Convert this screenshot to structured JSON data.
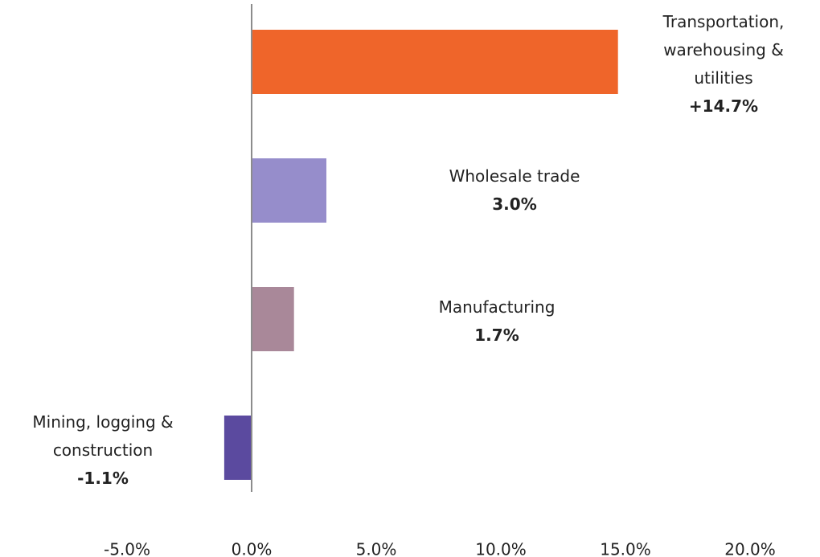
{
  "chart_data": {
    "type": "bar",
    "orientation": "horizontal",
    "categories": [
      "Transportation, warehousing & utilities",
      "Wholesale trade",
      "Manufacturing",
      "Mining, logging & construction"
    ],
    "values": [
      14.7,
      3.0,
      1.7,
      -1.1
    ],
    "value_labels": [
      "+14.7%",
      "3.0%",
      "1.7%",
      "-1.1%"
    ],
    "colors": [
      "#ef652a",
      "#968dcb",
      "#a98899",
      "#5b4a9f"
    ],
    "xlim": [
      -5,
      20
    ],
    "xticks": [
      {
        "value": -5,
        "label": "-5.0%"
      },
      {
        "value": 0,
        "label": "0.0%"
      },
      {
        "value": 5,
        "label": "5.0%"
      },
      {
        "value": 10,
        "label": "10.0%"
      },
      {
        "value": 15,
        "label": "15.0%"
      },
      {
        "value": 20,
        "label": "20.0%"
      }
    ],
    "grid": false
  }
}
